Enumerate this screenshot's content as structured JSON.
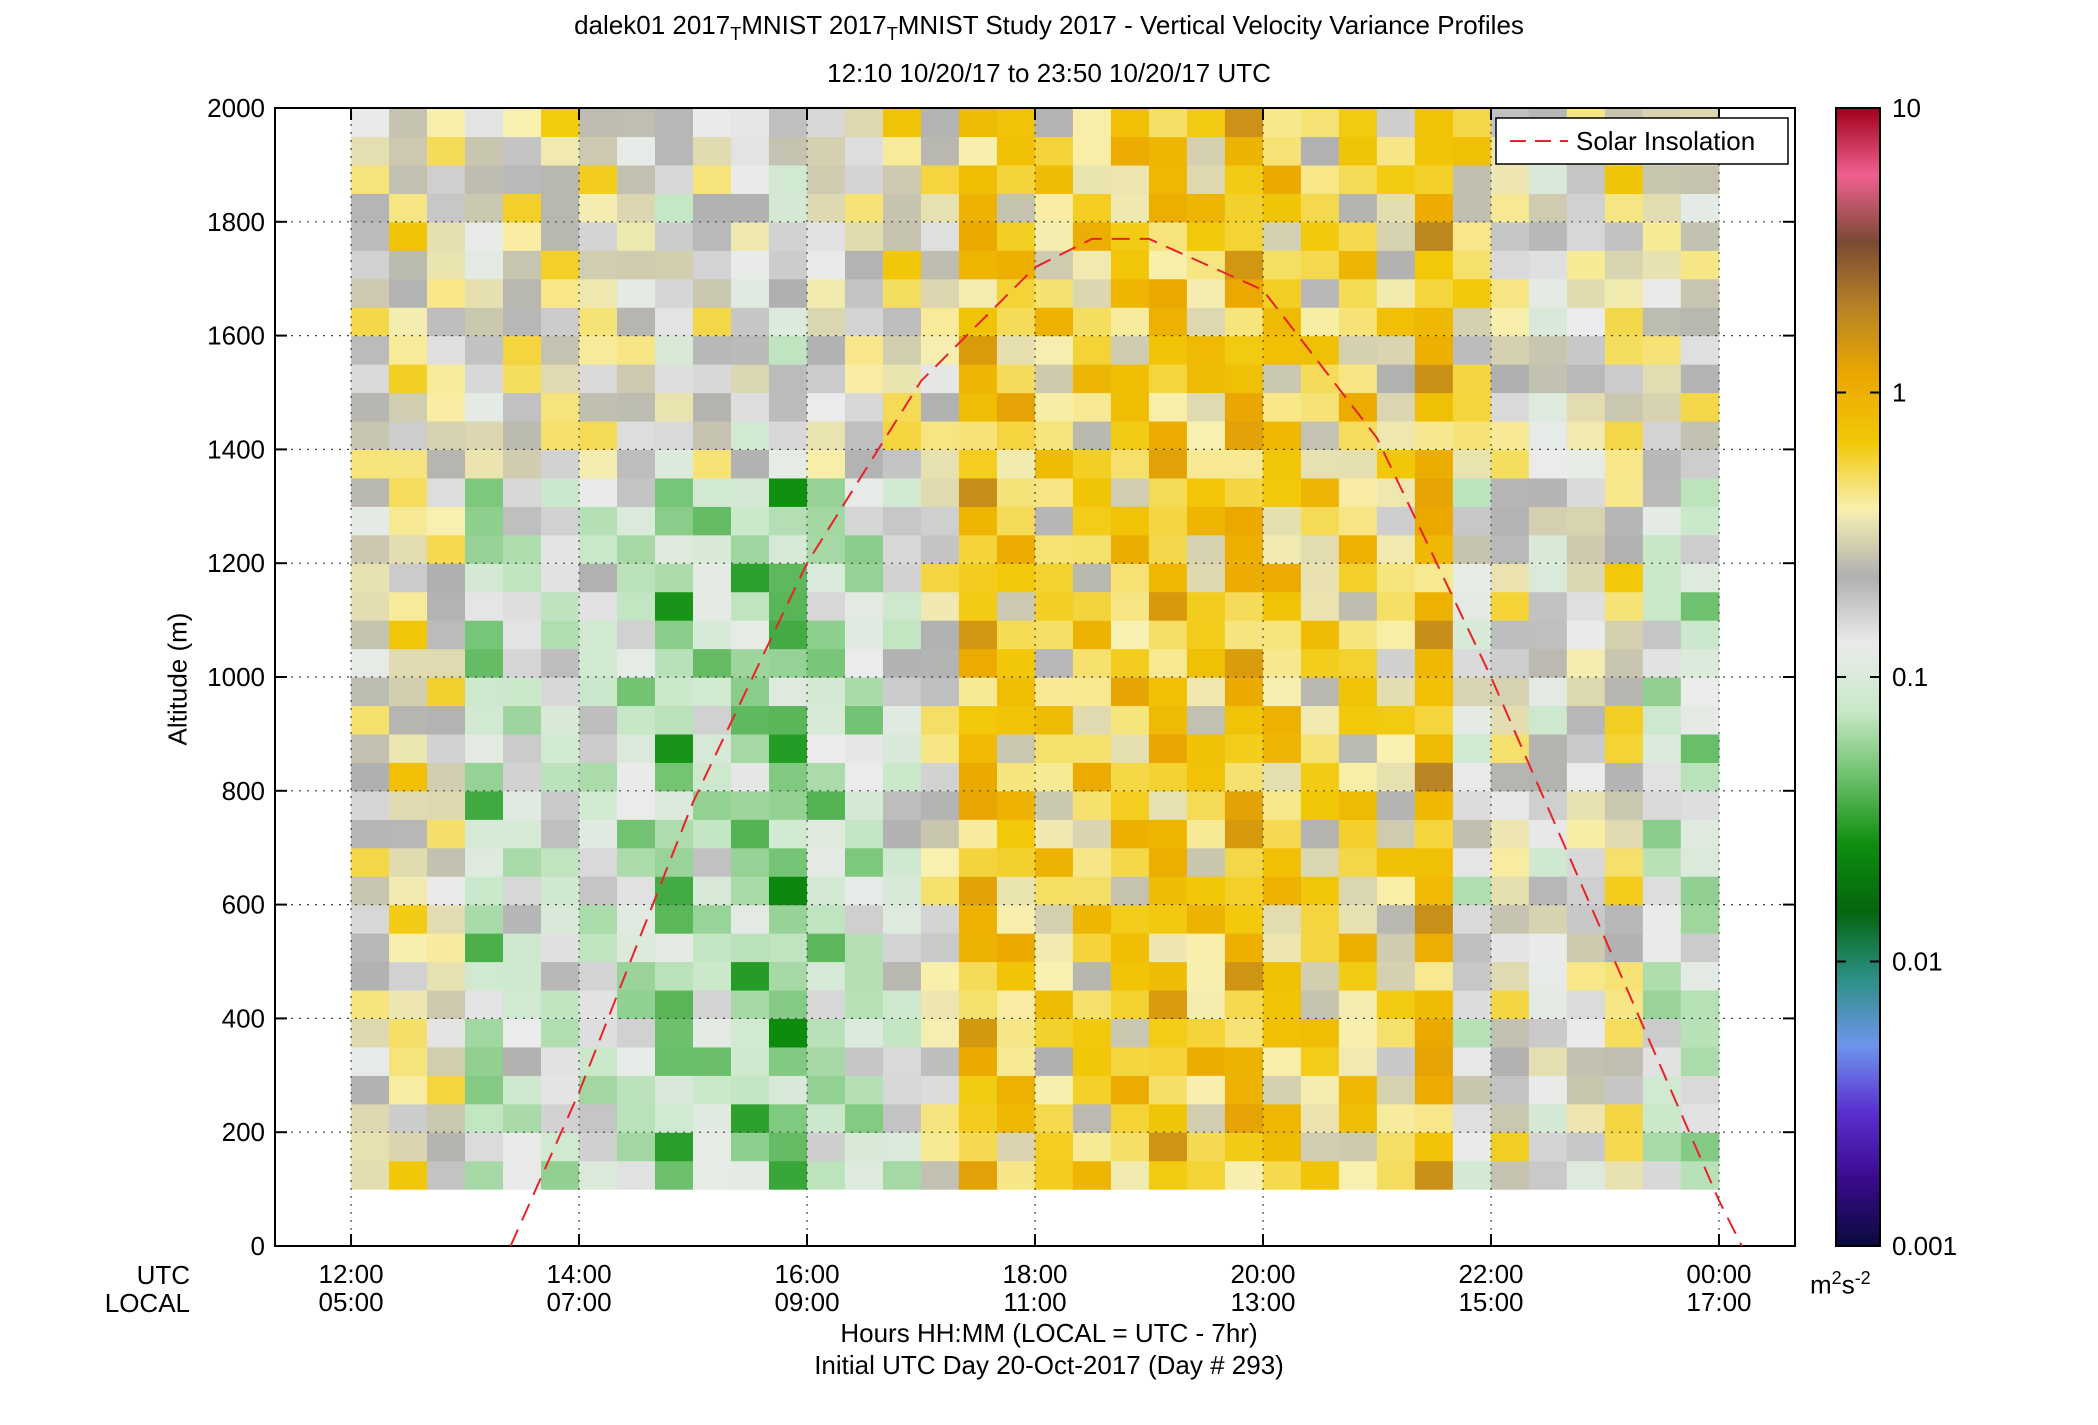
{
  "titles": {
    "line1_pre": "dalek01 2017",
    "sub_T": "T",
    "line1_mid": "MNIST 2017",
    "line1_post": "MNIST Study 2017 - Vertical Velocity Variance Profiles",
    "line2": "12:10 10/20/17 to 23:50 10/20/17  UTC"
  },
  "axes": {
    "ylabel": "Altitude (m)",
    "x_row_label_utc": "UTC",
    "x_row_label_local": "LOCAL",
    "xlabel_line1": "Hours HH:MM  (LOCAL = UTC - 7hr)",
    "xlabel_line2": "Initial UTC Day 20-Oct-2017 (Day # 293)",
    "colorbar_unit_base": "m",
    "colorbar_unit_exp1": "2",
    "colorbar_unit_mid": "s",
    "colorbar_unit_exp2": "-2"
  },
  "legend": {
    "label": "Solar Insolation",
    "color": "#e8232a"
  },
  "chart_data": {
    "type": "heatmap",
    "title": "dalek01 2017_TMNIST 2017_TMNIST Study 2017 - Vertical Velocity Variance Profiles",
    "subtitle": "12:10 10/20/17 to 23:50 10/20/17  UTC",
    "xlabel": "Hours HH:MM  (LOCAL = UTC - 7hr)",
    "ylabel": "Altitude (m)",
    "x_unit": "hours UTC",
    "xlim": [
      11.333,
      24.667
    ],
    "ylim": [
      0,
      2000
    ],
    "x_ticks_utc": [
      "12:00",
      "14:00",
      "16:00",
      "18:00",
      "20:00",
      "22:00",
      "00:00"
    ],
    "x_ticks_local": [
      "05:00",
      "07:00",
      "09:00",
      "11:00",
      "13:00",
      "15:00",
      "17:00"
    ],
    "x_tick_values": [
      12,
      14,
      16,
      18,
      20,
      22,
      24
    ],
    "y_ticks": [
      0,
      200,
      400,
      600,
      800,
      1000,
      1200,
      1400,
      1600,
      1800,
      2000
    ],
    "grid": true,
    "grid_style": "dotted",
    "legend_position": "top-right",
    "colorbar": {
      "scale": "log",
      "range": [
        0.001,
        10
      ],
      "tick_labels": [
        "10",
        "1",
        "0.1",
        "0.01",
        "0.001"
      ],
      "tick_values": [
        10,
        1,
        0.1,
        0.01,
        0.001
      ],
      "unit": "m^2s^-2",
      "colors_low_to_high": [
        "#0a0a3c",
        "#3a0a8c",
        "#5a2fd0",
        "#6f95ec",
        "#2b9085",
        "#04650f",
        "#0d8f0d",
        "#6cc06c",
        "#c9e8c9",
        "#ebebeb",
        "#b0b0b0",
        "#f8f0b0",
        "#f2c808",
        "#eba800",
        "#b88324",
        "#7a4a33",
        "#f06090",
        "#a0001a"
      ]
    },
    "time_start_utc": 12.1667,
    "time_end_utc": 23.8333,
    "time_step_hours": 0.3333,
    "altitude_start_m": 100,
    "altitude_end_m": 2000,
    "altitude_step_m": 50,
    "n_columns": 36,
    "column_mean_log10_variance": [
      -0.6,
      -0.45,
      -0.55,
      -1.15,
      -0.95,
      -0.95,
      -0.95,
      -1.05,
      -1.25,
      -1.05,
      -1.2,
      -1.3,
      -1.1,
      -1.05,
      -0.9,
      -0.55,
      -0.1,
      -0.25,
      -0.35,
      -0.3,
      -0.25,
      -0.15,
      -0.3,
      -0.1,
      -0.25,
      -0.35,
      -0.3,
      -0.45,
      -0.05,
      -0.85,
      -0.55,
      -0.8,
      -0.65,
      -0.45,
      -1.0,
      -1.05
    ],
    "value_unit": "m^2 s^-2",
    "note_values": "values shown by cell color, estimated",
    "series": [
      {
        "name": "Solar Insolation",
        "style": "dashed",
        "x": [
          13.4,
          14.0,
          15.0,
          16.0,
          17.0,
          18.0,
          18.5,
          19.0,
          20.0,
          21.0,
          22.0,
          23.0,
          24.0,
          24.2
        ],
        "y": [
          0,
          270,
          780,
          1200,
          1520,
          1720,
          1770,
          1770,
          1680,
          1420,
          1000,
          540,
          80,
          0
        ]
      }
    ]
  }
}
